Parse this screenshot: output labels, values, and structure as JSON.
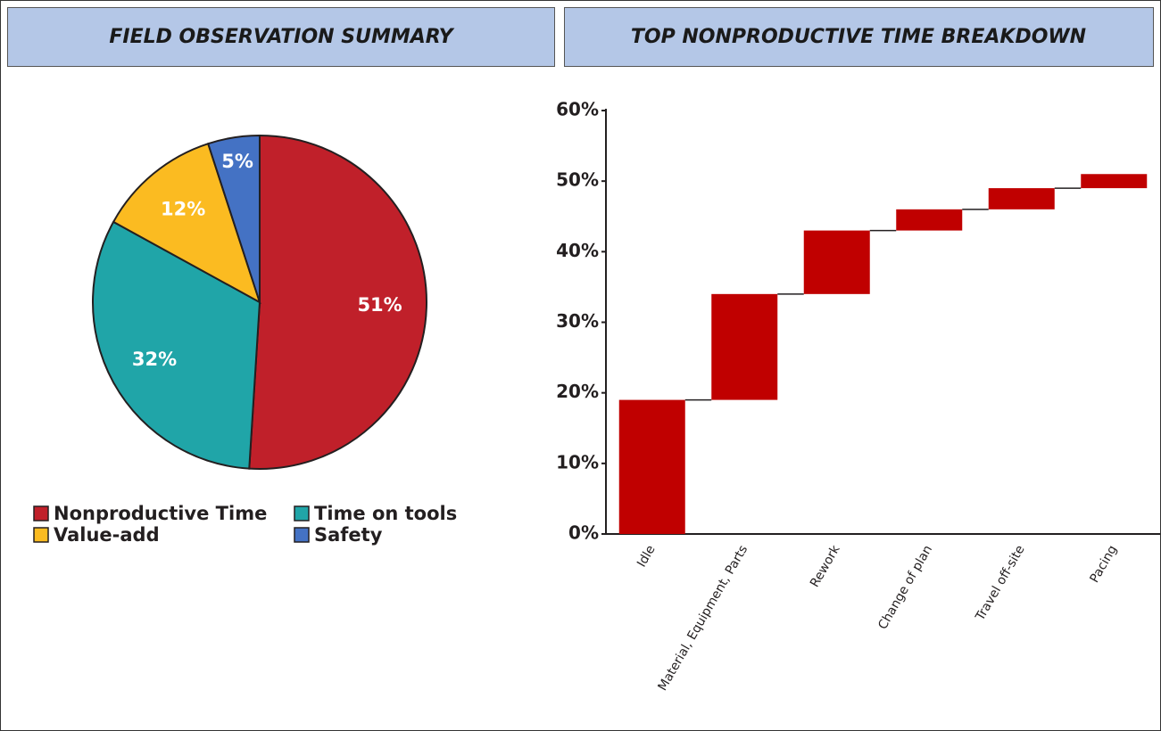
{
  "chart_data": [
    {
      "type": "pie",
      "title": "FIELD OBSERVATION SUMMARY",
      "categories": [
        "Nonproductive Time",
        "Time on tools",
        "Value-add",
        "Safety"
      ],
      "values": [
        51,
        32,
        12,
        5
      ],
      "value_labels": [
        "51%",
        "32%",
        "12%",
        "5%"
      ],
      "colors": [
        "#c0202a",
        "#20a5a8",
        "#fbbb21",
        "#4472c4"
      ]
    },
    {
      "type": "waterfall",
      "title": "TOP NONPRODUCTIVE TIME BREAKDOWN",
      "categories": [
        "Idle",
        "Material, Equipment, Parts",
        "Rework",
        "Change of plan",
        "Travel off-site",
        "Pacing"
      ],
      "values": [
        19,
        15,
        9,
        3,
        3,
        2
      ],
      "color": "#c00000",
      "ylim": [
        0,
        60
      ],
      "yticks": [
        {
          "value": 0,
          "label": "0%"
        },
        {
          "value": 10,
          "label": "10%"
        },
        {
          "value": 20,
          "label": "20%"
        },
        {
          "value": 30,
          "label": "30%"
        },
        {
          "value": 40,
          "label": "40%"
        },
        {
          "value": 50,
          "label": "50%"
        },
        {
          "value": 60,
          "label": "60%"
        }
      ]
    }
  ]
}
